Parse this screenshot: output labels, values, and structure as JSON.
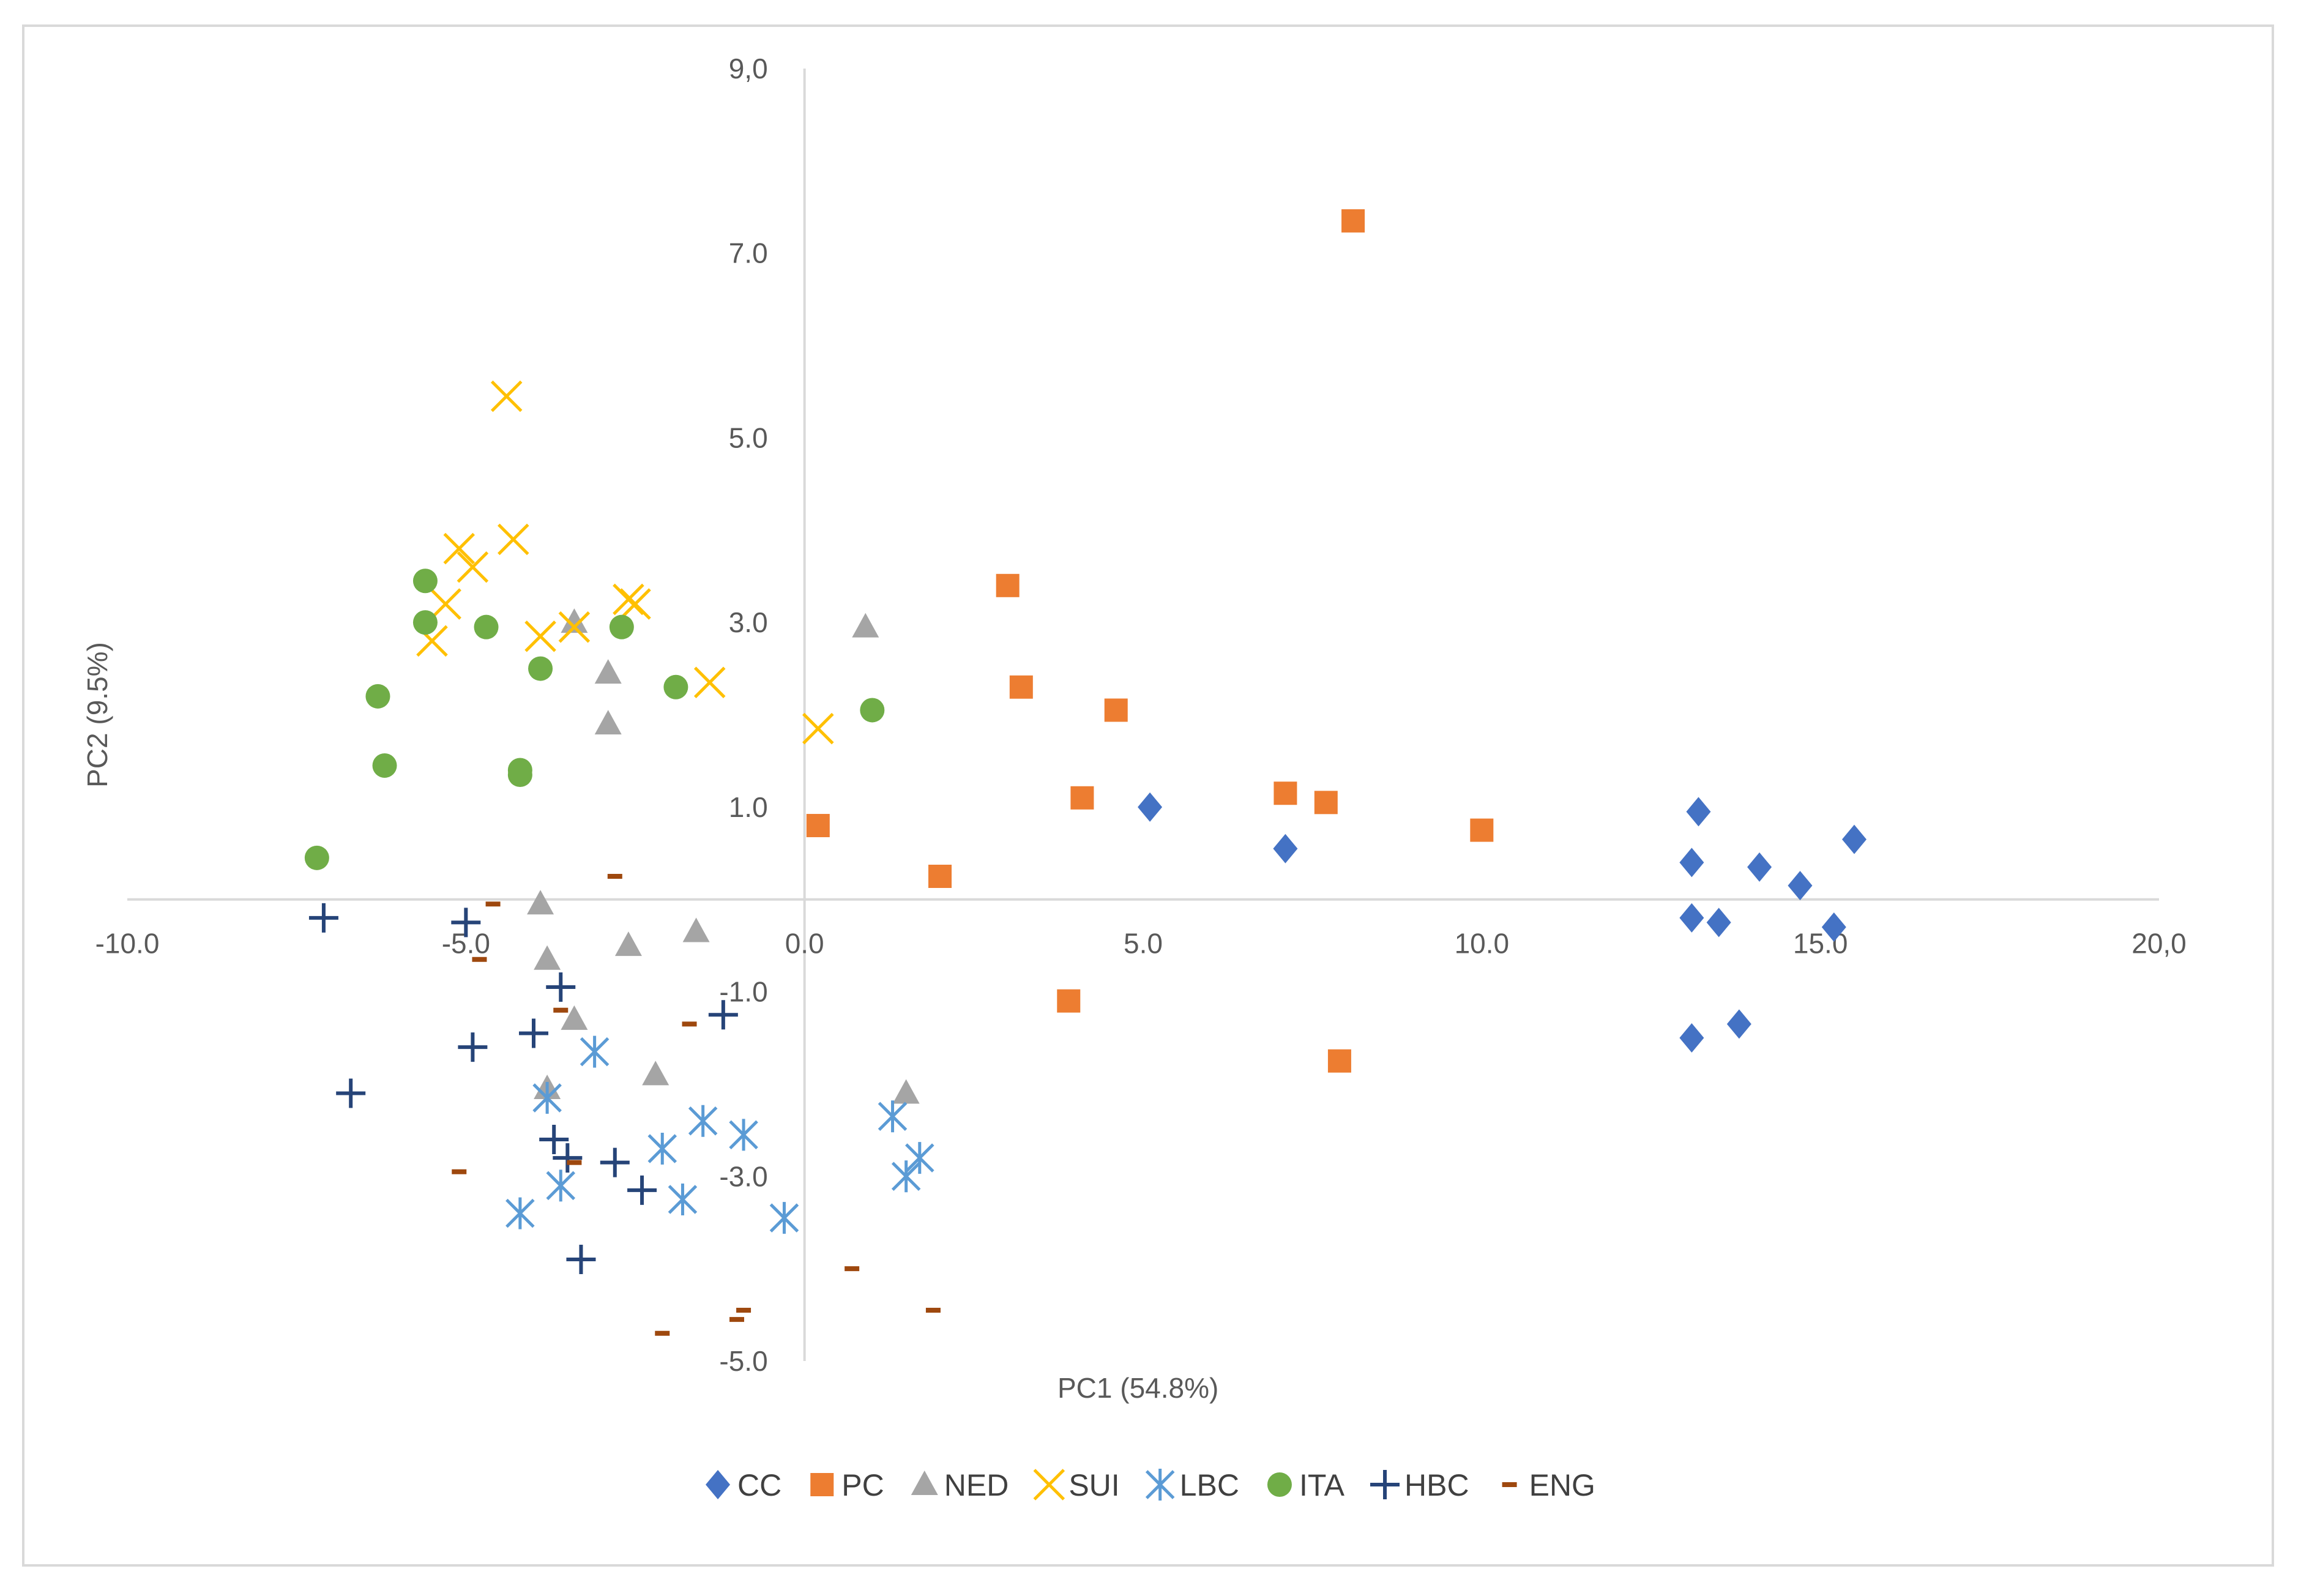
{
  "chart_data": {
    "type": "scatter",
    "title": "",
    "xlabel": "PC1 (54.8%)",
    "ylabel": "PC2 (9.5%)",
    "xlim": [
      -10,
      20
    ],
    "ylim": [
      -5,
      9
    ],
    "x_ticks": [
      -10,
      -5,
      0,
      5,
      10,
      15,
      20
    ],
    "x_tick_labels": [
      "-10.0",
      "-5.0",
      "0.0",
      "5.0",
      "10.0",
      "15.0",
      "20,0"
    ],
    "y_ticks": [
      9,
      7,
      5,
      3,
      1,
      -1,
      -3,
      -5
    ],
    "y_tick_labels": [
      "9,0",
      "7.0",
      "5.0",
      "3.0",
      "1.0",
      "-1.0",
      "-3.0",
      "-5.0"
    ],
    "grid": false,
    "legend_position": "bottom",
    "series": [
      {
        "name": "CC",
        "marker": "diamond",
        "color": "#4472c4",
        "points": [
          [
            5.1,
            1.0
          ],
          [
            7.1,
            0.55
          ],
          [
            13.2,
            0.95
          ],
          [
            13.1,
            0.4
          ],
          [
            14.1,
            0.35
          ],
          [
            15.5,
            0.65
          ],
          [
            14.7,
            0.15
          ],
          [
            13.1,
            -0.2
          ],
          [
            13.5,
            -0.25
          ],
          [
            15.2,
            -0.3
          ],
          [
            13.1,
            -1.5
          ],
          [
            13.8,
            -1.35
          ]
        ]
      },
      {
        "name": "PC",
        "marker": "square",
        "color": "#ed7d31",
        "points": [
          [
            8.1,
            7.35
          ],
          [
            3.0,
            3.4
          ],
          [
            3.2,
            2.3
          ],
          [
            4.6,
            2.05
          ],
          [
            4.1,
            1.1
          ],
          [
            7.1,
            1.15
          ],
          [
            7.7,
            1.05
          ],
          [
            10.0,
            0.75
          ],
          [
            0.2,
            0.8
          ],
          [
            2.0,
            0.25
          ],
          [
            3.9,
            -1.1
          ],
          [
            7.9,
            -1.75
          ]
        ]
      },
      {
        "name": "NED",
        "marker": "triangle",
        "color": "#a5a5a5",
        "points": [
          [
            -3.4,
            3.0
          ],
          [
            0.9,
            2.95
          ],
          [
            -2.9,
            2.45
          ],
          [
            -2.9,
            1.9
          ],
          [
            -3.9,
            -0.05
          ],
          [
            -3.8,
            -0.65
          ],
          [
            -2.6,
            -0.5
          ],
          [
            -1.6,
            -0.35
          ],
          [
            -3.4,
            -1.3
          ],
          [
            -2.2,
            -1.9
          ],
          [
            1.5,
            -2.1
          ],
          [
            -3.8,
            -2.05
          ]
        ]
      },
      {
        "name": "SUI",
        "marker": "x",
        "color": "#ffc000",
        "points": [
          [
            -4.4,
            5.45
          ],
          [
            -5.1,
            3.8
          ],
          [
            -4.3,
            3.9
          ],
          [
            -4.9,
            3.6
          ],
          [
            -5.3,
            3.2
          ],
          [
            -2.6,
            3.25
          ],
          [
            -2.5,
            3.2
          ],
          [
            -5.5,
            2.8
          ],
          [
            -3.9,
            2.85
          ],
          [
            -3.4,
            2.95
          ],
          [
            -1.4,
            2.35
          ],
          [
            0.2,
            1.85
          ]
        ]
      },
      {
        "name": "LBC",
        "marker": "asterisk",
        "color": "#5b9bd5",
        "points": [
          [
            -3.1,
            -1.65
          ],
          [
            -3.8,
            -2.15
          ],
          [
            -1.5,
            -2.4
          ],
          [
            -0.9,
            -2.55
          ],
          [
            -2.1,
            -2.7
          ],
          [
            -3.6,
            -3.1
          ],
          [
            -4.2,
            -3.4
          ],
          [
            -1.8,
            -3.25
          ],
          [
            -0.3,
            -3.45
          ],
          [
            1.3,
            -2.35
          ],
          [
            1.7,
            -2.8
          ],
          [
            1.5,
            -3.0
          ]
        ]
      },
      {
        "name": "ITA",
        "marker": "circle",
        "color": "#70ad47",
        "points": [
          [
            -5.6,
            3.45
          ],
          [
            -5.6,
            3.0
          ],
          [
            -4.7,
            2.95
          ],
          [
            -2.7,
            2.95
          ],
          [
            -3.9,
            2.5
          ],
          [
            -6.3,
            2.2
          ],
          [
            -1.9,
            2.3
          ],
          [
            1.0,
            2.05
          ],
          [
            -6.2,
            1.45
          ],
          [
            -4.2,
            1.4
          ],
          [
            -4.2,
            1.35
          ],
          [
            -7.2,
            0.45
          ]
        ]
      },
      {
        "name": "HBC",
        "marker": "plus",
        "color": "#264478",
        "points": [
          [
            -7.1,
            -0.2
          ],
          [
            -5.0,
            -0.25
          ],
          [
            -3.6,
            -0.95
          ],
          [
            -1.2,
            -1.25
          ],
          [
            -4.0,
            -1.45
          ],
          [
            -4.9,
            -1.6
          ],
          [
            -6.7,
            -2.1
          ],
          [
            -3.7,
            -2.6
          ],
          [
            -3.5,
            -2.8
          ],
          [
            -2.8,
            -2.85
          ],
          [
            -2.4,
            -3.15
          ],
          [
            -3.3,
            -3.9
          ]
        ]
      },
      {
        "name": "ENG",
        "marker": "dash",
        "color": "#9e480e",
        "points": [
          [
            -2.8,
            0.25
          ],
          [
            -4.6,
            -0.05
          ],
          [
            -4.8,
            -0.65
          ],
          [
            -3.6,
            -1.2
          ],
          [
            -1.7,
            -1.35
          ],
          [
            -5.1,
            -2.95
          ],
          [
            -3.4,
            -2.85
          ],
          [
            0.7,
            -4.0
          ],
          [
            1.9,
            -4.45
          ],
          [
            -0.9,
            -4.45
          ],
          [
            -1.0,
            -4.55
          ],
          [
            -2.1,
            -4.7
          ]
        ]
      }
    ]
  }
}
